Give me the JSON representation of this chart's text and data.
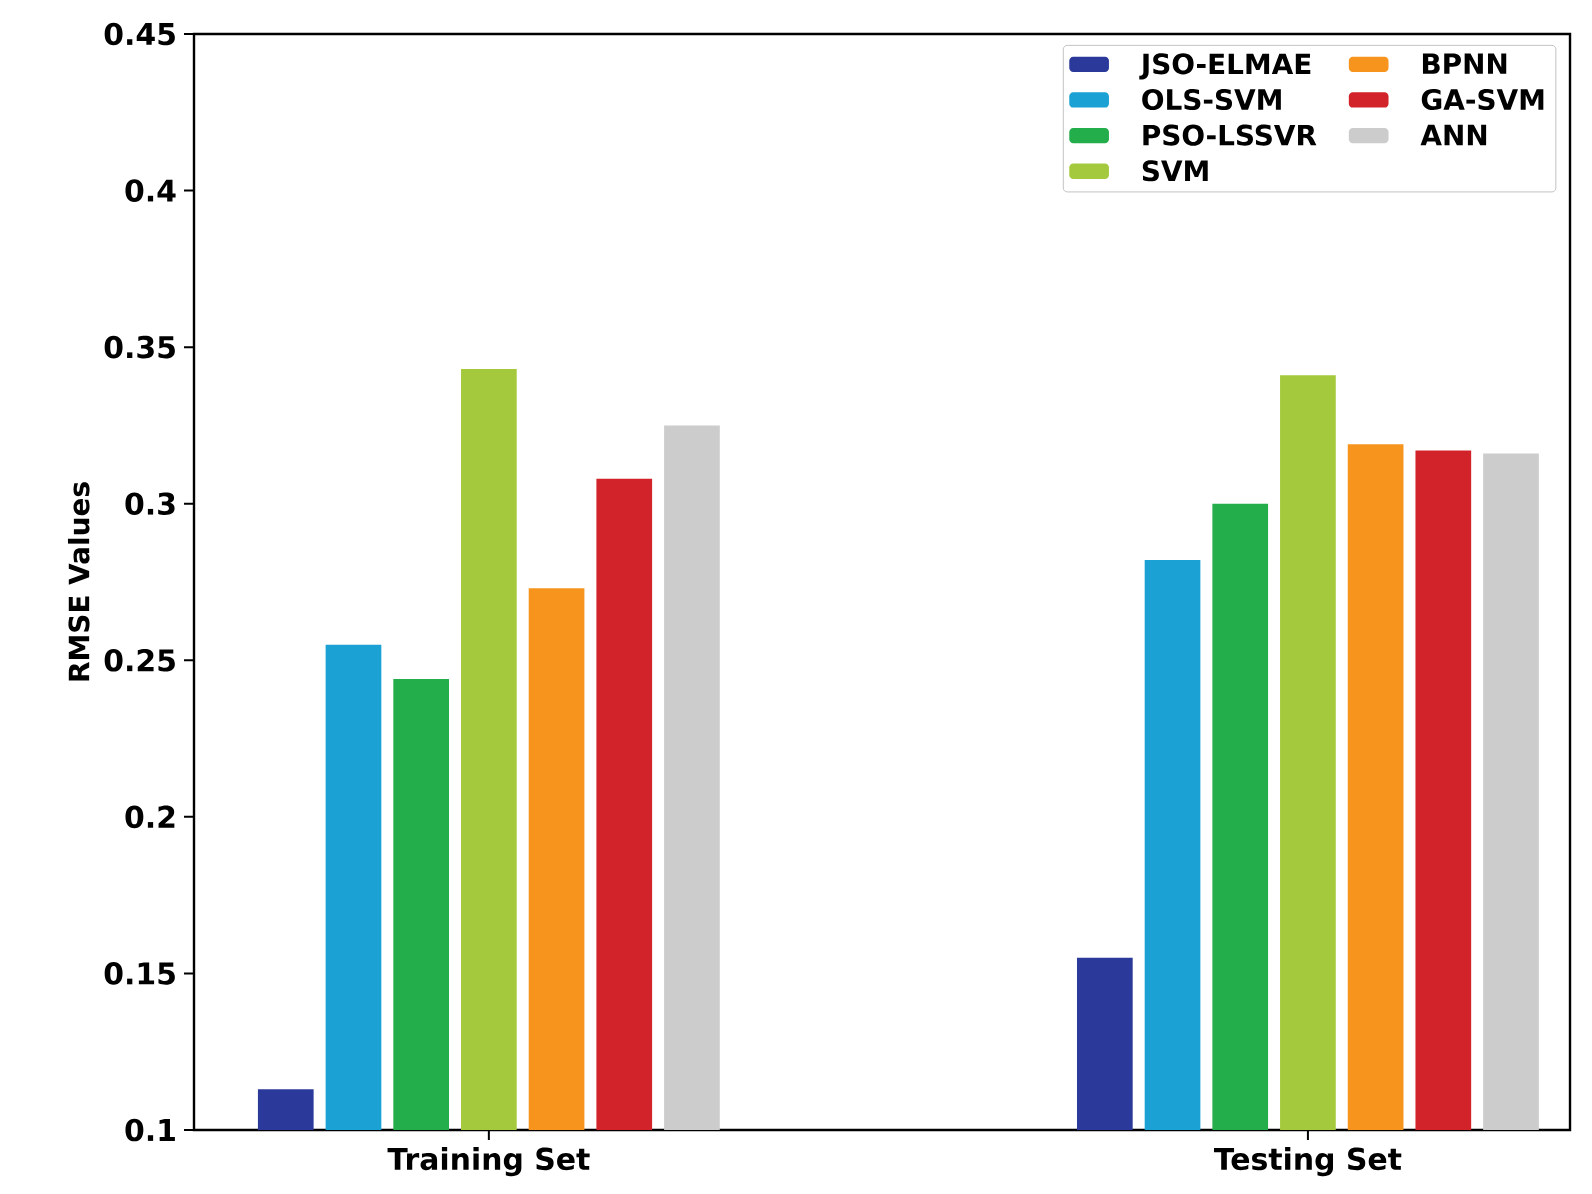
{
  "chart_data": {
    "type": "bar",
    "ylabel": "RMSE Values",
    "categories": [
      "Training Set",
      "Testing Set"
    ],
    "series": [
      {
        "name": "JSO-ELMAE",
        "color": "#2b3a9a",
        "values": [
          0.113,
          0.155
        ]
      },
      {
        "name": "OLS-SVM",
        "color": "#1ba1d4",
        "values": [
          0.255,
          0.282
        ]
      },
      {
        "name": "PSO-LSSVR",
        "color": "#23ae4b",
        "values": [
          0.244,
          0.3
        ]
      },
      {
        "name": "SVM",
        "color": "#a4c93c",
        "values": [
          0.343,
          0.341
        ]
      },
      {
        "name": "BPNN",
        "color": "#f7941d",
        "values": [
          0.273,
          0.319
        ]
      },
      {
        "name": "GA-SVM",
        "color": "#d2232a",
        "values": [
          0.308,
          0.317
        ]
      },
      {
        "name": "ANN",
        "color": "#cccccc",
        "values": [
          0.325,
          0.316
        ]
      }
    ],
    "ylim": [
      0.1,
      0.45
    ],
    "yticks": [
      0.1,
      0.15,
      0.2,
      0.25,
      0.3,
      0.35,
      0.4,
      0.45
    ],
    "grid": false,
    "legend": "top right"
  }
}
